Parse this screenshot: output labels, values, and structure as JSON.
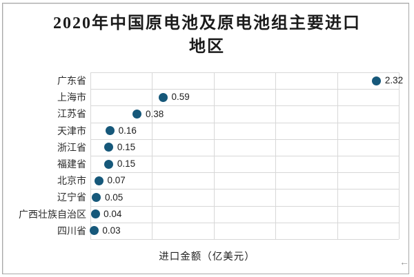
{
  "chart_data": {
    "type": "scatter",
    "title": "2020年中国原电池及原电池组主要进口地区",
    "title_lines": [
      "2020年中国原电池及原电池组主要进口",
      "地区"
    ],
    "categories": [
      "广东省",
      "上海市",
      "江苏省",
      "天津市",
      "浙江省",
      "福建省",
      "北京市",
      "辽宁省",
      "广西壮族自治区",
      "四川省"
    ],
    "values": [
      2.32,
      0.59,
      0.38,
      0.16,
      0.15,
      0.15,
      0.07,
      0.05,
      0.04,
      0.03
    ],
    "value_labels": [
      "2.32",
      "0.59",
      "0.38",
      "0.16",
      "0.15",
      "0.15",
      "0.07",
      "0.05",
      "0.04",
      "0.03"
    ],
    "xlabel": "进口金额（亿美元）",
    "ylabel": "",
    "xlim": [
      0,
      2.5
    ],
    "x_gridline_step": 0.5,
    "grid": "on",
    "legend": "none",
    "orientation": "horizontal-dot-plot",
    "marker_color": "#16587a",
    "grid_color": "#d7d7d7",
    "frame_color": "#a8a8a8"
  },
  "icons": {
    "cursor_arrow": "←"
  }
}
